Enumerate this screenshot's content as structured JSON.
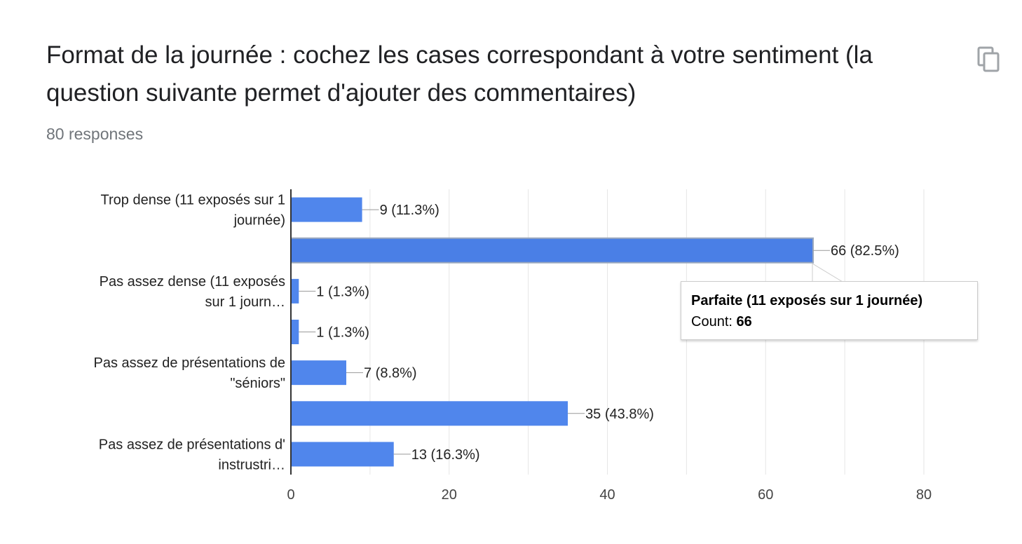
{
  "header": {
    "title": "Format de la journée : cochez les cases correspondant à votre sentiment (la question suivante permet d'ajouter des commentaires)",
    "responses": "80 responses",
    "copy_icon": "copy-icon"
  },
  "tooltip": {
    "title": "Parfaite (11 exposés sur 1 journée)",
    "count_label": "Count: ",
    "count_value": "66"
  },
  "colors": {
    "bar": "#5086ec",
    "bar_highlight": "#4a7fe6",
    "grid": "#e6e6e6",
    "axis": "#333333",
    "label": "#222222"
  },
  "chart_data": {
    "type": "bar",
    "orientation": "horizontal",
    "category_labels": [
      [
        "Trop dense (11 exposés sur 1",
        "journée)"
      ],
      [],
      [
        "Pas assez dense (11 exposés",
        "sur 1 journ…"
      ],
      [],
      [
        "Pas assez de présentations de",
        "\"séniors\""
      ],
      [],
      [
        "Pas assez de présentations d'",
        "instrustri…"
      ]
    ],
    "values": [
      9,
      66,
      1,
      1,
      7,
      35,
      13
    ],
    "data_labels": [
      "9 (11.3%)",
      "66 (82.5%)",
      "1 (1.3%)",
      "1 (1.3%)",
      "7 (8.8%)",
      "35 (43.8%)",
      "13 (16.3%)"
    ],
    "highlighted_index": 1,
    "xlim": [
      0,
      80
    ],
    "xticks": [
      0,
      20,
      40,
      60,
      80
    ],
    "grid": true,
    "title": "",
    "xlabel": "",
    "ylabel": ""
  }
}
